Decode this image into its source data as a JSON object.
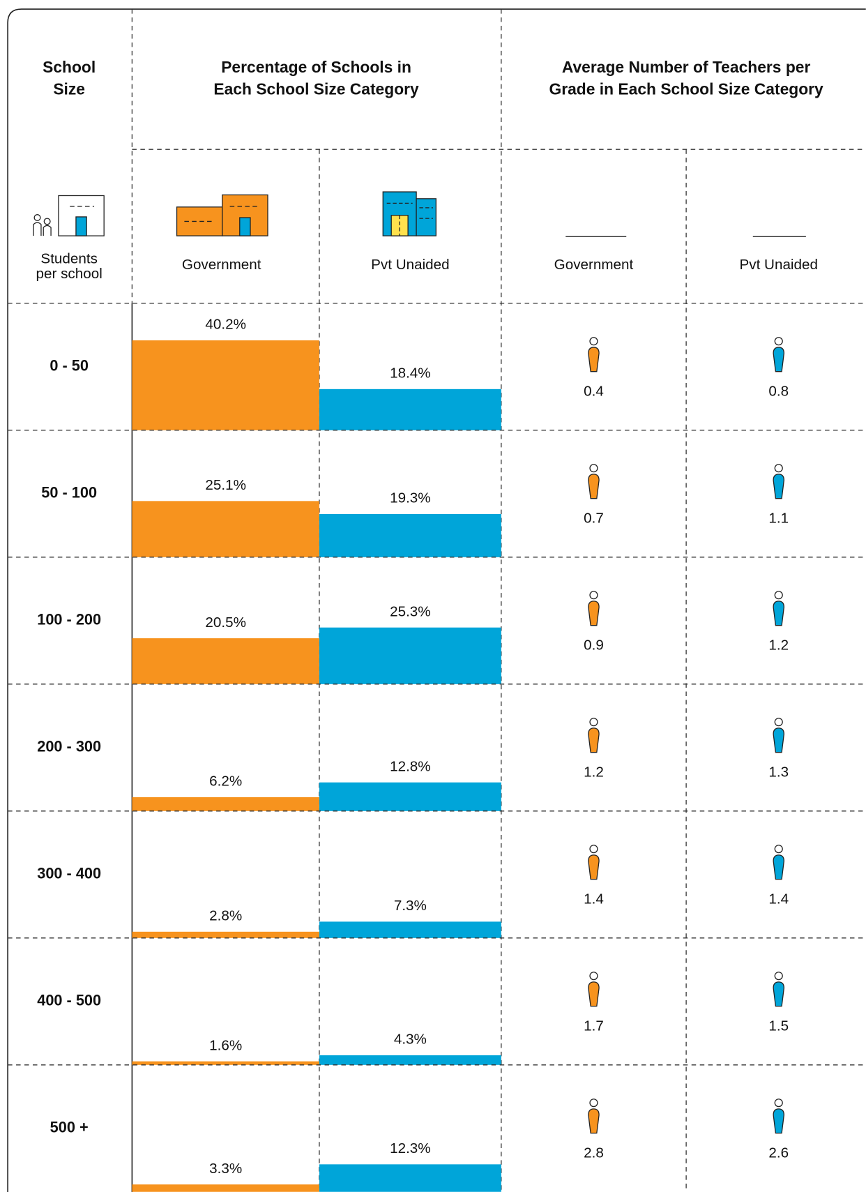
{
  "header": {
    "school_size": [
      "School",
      "Size"
    ],
    "percentage": [
      "Percentage of Schools in",
      "Each School Size Category"
    ],
    "teachers": [
      "Average Number of Teachers per",
      "Grade in Each School Size Category"
    ]
  },
  "subheader": {
    "students": [
      "Students",
      "per school"
    ],
    "pct_government": "Government",
    "pct_pvt": "Pvt Unaided",
    "teachers_government": "Government",
    "teachers_pvt": "Pvt Unaided"
  },
  "table": {
    "sizes": [
      "0 - 50",
      "50 - 100",
      "100 - 200",
      "200 - 300",
      "300 - 400",
      "400 - 500",
      "500 +"
    ],
    "percentage": {
      "government": {
        "color": "#f7931e",
        "values": [
          40.2,
          25.1,
          20.5,
          6.2,
          2.8,
          1.6,
          3.3
        ],
        "value_labels": [
          "40.2%",
          "25.1%",
          "20.5%",
          "6.2%",
          "2.8%",
          "1.6%",
          "3.3%"
        ]
      },
      "pvt_unaided": {
        "color": "#00a5d9",
        "values": [
          18.4,
          19.3,
          25.3,
          12.8,
          7.3,
          4.3,
          12.3
        ],
        "value_labels": [
          "18.4%",
          "19.3%",
          "25.3%",
          "12.8%",
          "7.3%",
          "4.3%",
          "12.3%"
        ]
      }
    },
    "teachers": {
      "government": {
        "color": "#f7931e",
        "values": [
          0.4,
          0.7,
          0.9,
          1.2,
          1.4,
          1.7,
          2.8
        ]
      },
      "pvt_unaided": {
        "color": "#00a5d9",
        "values": [
          0.8,
          1.1,
          1.2,
          1.3,
          1.4,
          1.5,
          2.6
        ]
      }
    }
  }
}
